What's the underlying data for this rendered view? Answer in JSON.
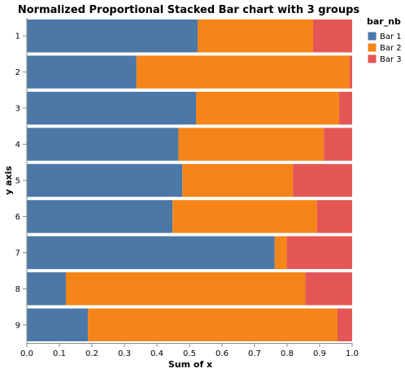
{
  "chart_data": {
    "type": "bar",
    "orientation": "horizontal",
    "stacked": "normalized",
    "title": "Normalized Proportional Stacked Bar chart with 3 groups",
    "xlabel": "Sum of x",
    "ylabel": "y axis",
    "xlim": [
      0,
      1
    ],
    "x_ticks": [
      "0.0",
      "0.1",
      "0.2",
      "0.3",
      "0.4",
      "0.5",
      "0.6",
      "0.7",
      "0.8",
      "0.9",
      "1.0"
    ],
    "categories": [
      "1",
      "2",
      "3",
      "4",
      "5",
      "6",
      "7",
      "8",
      "9"
    ],
    "legend": {
      "title": "bar_nb",
      "position": "top-right"
    },
    "grid": false,
    "series": [
      {
        "name": "Bar 1",
        "color": "#4c78a8",
        "values": [
          0.525,
          0.337,
          0.52,
          0.466,
          0.478,
          0.448,
          0.762,
          0.12,
          0.188
        ]
      },
      {
        "name": "Bar 2",
        "color": "#f58518",
        "values": [
          0.355,
          0.655,
          0.44,
          0.447,
          0.34,
          0.444,
          0.037,
          0.736,
          0.767
        ]
      },
      {
        "name": "Bar 3",
        "color": "#e45756",
        "values": [
          0.12,
          0.008,
          0.04,
          0.087,
          0.182,
          0.108,
          0.201,
          0.144,
          0.045
        ]
      }
    ]
  }
}
